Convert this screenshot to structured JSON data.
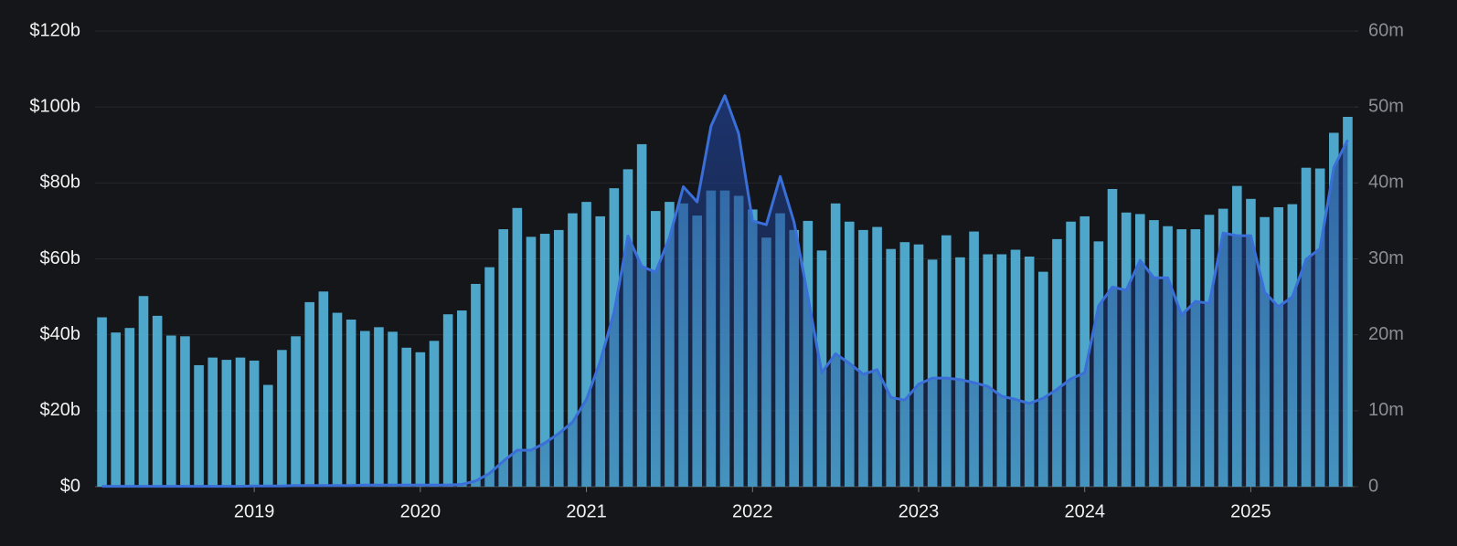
{
  "chart_data": {
    "type": "bar",
    "categories": [
      null,
      null,
      null,
      null,
      null,
      null,
      null,
      null,
      null,
      null,
      null,
      "2019",
      null,
      null,
      null,
      null,
      null,
      null,
      null,
      null,
      null,
      null,
      null,
      "2020",
      null,
      null,
      null,
      null,
      null,
      null,
      null,
      null,
      null,
      null,
      null,
      "2021",
      null,
      null,
      null,
      null,
      null,
      null,
      null,
      null,
      null,
      null,
      null,
      "2022",
      null,
      null,
      null,
      null,
      null,
      null,
      null,
      null,
      null,
      null,
      null,
      "2023",
      null,
      null,
      null,
      null,
      null,
      null,
      null,
      null,
      null,
      null,
      null,
      "2024",
      null,
      null,
      null,
      null,
      null,
      null,
      null,
      null,
      null,
      null,
      null,
      "2025",
      null,
      null,
      null,
      null,
      null,
      null,
      null
    ],
    "series": [
      {
        "type": "area",
        "axis": "y",
        "color": "#3b6fd8",
        "values": [
          0.1,
          0.1,
          0.1,
          0.1,
          0.1,
          0.1,
          0.1,
          0.1,
          0.1,
          0.1,
          0.1,
          0.2,
          0.2,
          0.2,
          0.3,
          0.3,
          0.3,
          0.3,
          0.3,
          0.4,
          0.4,
          0.4,
          0.4,
          0.4,
          0.4,
          0.4,
          0.6,
          1.5,
          3.5,
          6.7,
          9.6,
          9.6,
          11.5,
          14,
          17,
          23,
          33,
          46,
          66,
          58,
          56.5,
          65.6,
          79,
          75,
          95,
          103,
          93,
          70,
          69,
          81.7,
          69.7,
          50,
          30,
          35,
          32.5,
          29.6,
          30.8,
          23.5,
          22.8,
          27,
          28.6,
          28.6,
          28.2,
          27.4,
          26.4,
          23.8,
          23,
          21.9,
          23.3,
          25.6,
          28.4,
          30,
          47.6,
          52.6,
          51.7,
          59.6,
          55,
          55,
          45.2,
          48.8,
          48.3,
          66.8,
          66.1,
          66.1,
          51.2,
          47.4,
          50,
          59.9,
          62.7,
          84.1,
          91.3
        ]
      },
      {
        "type": "bar",
        "axis": "y2",
        "color": "#54b4d9",
        "values": [
          22.3,
          20.3,
          20.9,
          25.1,
          22.5,
          19.9,
          19.8,
          16,
          17,
          16.7,
          17,
          16.6,
          13.4,
          18,
          19.8,
          24.3,
          25.7,
          22.9,
          22,
          20.5,
          21,
          20.4,
          18.3,
          17.7,
          19.2,
          22.7,
          23.2,
          26.7,
          28.9,
          33.9,
          36.7,
          32.9,
          33.3,
          33.8,
          36,
          37.5,
          35.6,
          39.3,
          41.8,
          45.1,
          36.3,
          37.5,
          37.3,
          35.7,
          39,
          39,
          38.3,
          36.5,
          32.8,
          36,
          33.8,
          35,
          31.1,
          37.3,
          34.9,
          33.8,
          34.2,
          31.3,
          32.2,
          31.9,
          29.9,
          33.1,
          30.2,
          33.6,
          30.6,
          30.6,
          31.2,
          30.3,
          28.3,
          32.6,
          34.9,
          35.6,
          32.3,
          39.2,
          36.1,
          35.9,
          35.1,
          34.3,
          33.9,
          33.9,
          35.8,
          36.6,
          39.6,
          37.9,
          35.5,
          36.8,
          37.2,
          42,
          41.9,
          46.6,
          48.7
        ]
      }
    ],
    "ylim": [
      0,
      120
    ],
    "yticks": [
      {
        "value": 0,
        "label": "$0"
      },
      {
        "value": 20,
        "label": "$20b"
      },
      {
        "value": 40,
        "label": "$40b"
      },
      {
        "value": 60,
        "label": "$60b"
      },
      {
        "value": 80,
        "label": "$80b"
      },
      {
        "value": 100,
        "label": "$100b"
      },
      {
        "value": 120,
        "label": "$120b"
      }
    ],
    "y2lim": [
      0,
      60
    ],
    "y2ticks": [
      0,
      {
        "value": 10,
        "label": "10m"
      },
      {
        "value": 20,
        "label": "20m"
      },
      {
        "value": 30,
        "label": "30m"
      },
      {
        "value": 40,
        "label": "40m"
      },
      {
        "value": 50,
        "label": "50m"
      },
      {
        "value": 60,
        "label": "60m"
      }
    ],
    "grid": true
  }
}
